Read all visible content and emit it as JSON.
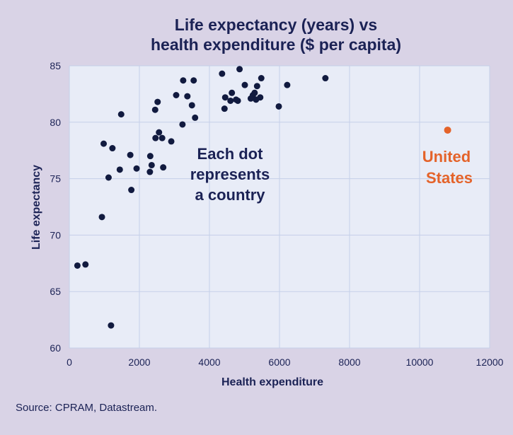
{
  "source_text": "Source: CPRAM, Datastream.",
  "colors": {
    "background": "#d9d3e6",
    "plot_bg": "#e8ecf7",
    "grid": "#c5cfe8",
    "dot": "#111a3f",
    "highlight": "#e4632a",
    "text": "#1b2255"
  },
  "chart_data": {
    "type": "scatter",
    "title_lines": [
      "Life expectancy (years) vs",
      "health expenditure ($ per capita)"
    ],
    "xlabel": "Health expenditure",
    "ylabel": "Life expectancy",
    "xlim": [
      0,
      12000
    ],
    "ylim": [
      60,
      85
    ],
    "xticks": [
      0,
      2000,
      4000,
      6000,
      8000,
      10000,
      12000
    ],
    "yticks": [
      60,
      65,
      70,
      75,
      80,
      85
    ],
    "grid": true,
    "annotation_lines": [
      "Each dot",
      "represents",
      "a country"
    ],
    "highlight": {
      "name_lines": [
        "United",
        "States"
      ],
      "x": 10800,
      "y": 79.3
    },
    "points": [
      [
        230,
        67.3
      ],
      [
        460,
        67.4
      ],
      [
        930,
        71.6
      ],
      [
        1190,
        62.0
      ],
      [
        980,
        78.1
      ],
      [
        1120,
        75.1
      ],
      [
        1230,
        77.7
      ],
      [
        1440,
        75.8
      ],
      [
        1480,
        80.7
      ],
      [
        1740,
        77.1
      ],
      [
        1770,
        74.0
      ],
      [
        1920,
        75.9
      ],
      [
        2300,
        75.6
      ],
      [
        2310,
        77.0
      ],
      [
        2350,
        76.2
      ],
      [
        2450,
        81.1
      ],
      [
        2460,
        78.6
      ],
      [
        2520,
        81.8
      ],
      [
        2560,
        79.1
      ],
      [
        2650,
        78.6
      ],
      [
        2680,
        76.0
      ],
      [
        2910,
        78.3
      ],
      [
        3050,
        82.4
      ],
      [
        3230,
        79.8
      ],
      [
        3250,
        83.7
      ],
      [
        3370,
        82.3
      ],
      [
        3500,
        81.5
      ],
      [
        3550,
        83.7
      ],
      [
        3590,
        80.4
      ],
      [
        4360,
        84.3
      ],
      [
        4430,
        81.2
      ],
      [
        4450,
        82.2
      ],
      [
        4600,
        81.9
      ],
      [
        4640,
        82.6
      ],
      [
        4760,
        82.0
      ],
      [
        4810,
        81.9
      ],
      [
        4860,
        84.7
      ],
      [
        5010,
        83.3
      ],
      [
        5180,
        82.1
      ],
      [
        5240,
        82.4
      ],
      [
        5290,
        82.6
      ],
      [
        5330,
        82.0
      ],
      [
        5360,
        83.2
      ],
      [
        5450,
        82.2
      ],
      [
        5480,
        83.9
      ],
      [
        5980,
        81.4
      ],
      [
        6220,
        83.3
      ],
      [
        7310,
        83.9
      ]
    ]
  }
}
